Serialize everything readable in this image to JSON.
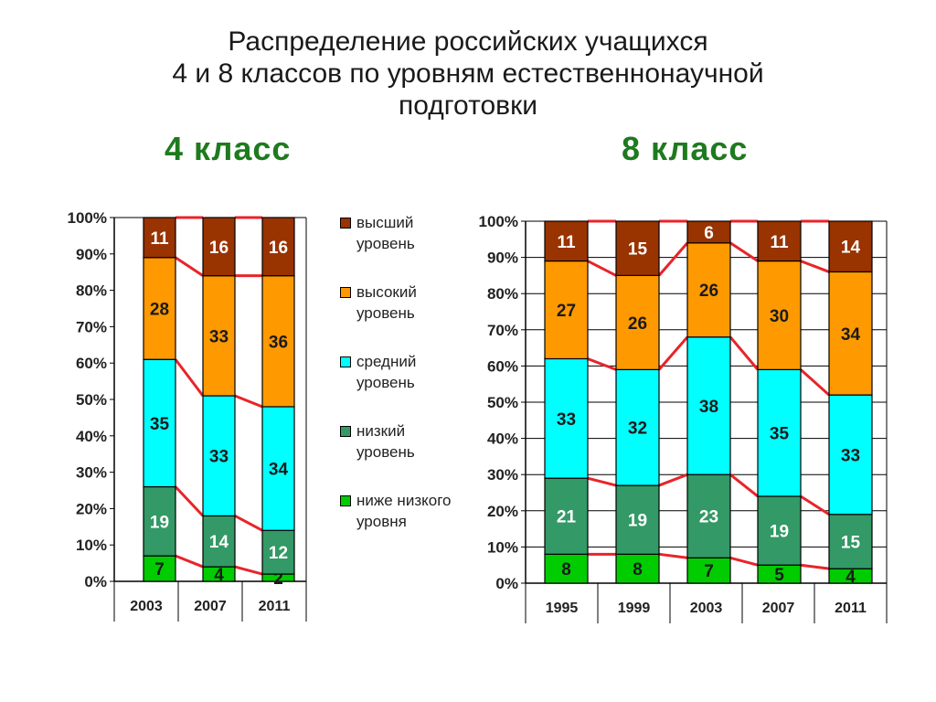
{
  "title": {
    "line1": "Распределение российских учащихся",
    "line2": "4 и 8 классов по уровням естественнонаучной",
    "line3": "подготовки"
  },
  "grade_titles": {
    "left": "4 класс",
    "right": "8 класс"
  },
  "legend": [
    {
      "label": "высший уровень",
      "color": "#993300"
    },
    {
      "label": "высокий уровень",
      "color": "#ff9900"
    },
    {
      "label": "средний уровень",
      "color": "#00ffff"
    },
    {
      "label": "низкий уровень",
      "color": "#339966"
    },
    {
      "label": "ниже низкого уровня",
      "color": "#00cc00"
    }
  ],
  "colors": {
    "connector_line": "#e8242a",
    "gridline": "#000000",
    "bar_border": "#000000"
  },
  "chart_data": [
    {
      "type": "bar",
      "stacked": true,
      "normalized": true,
      "title": "4 класс",
      "categories": [
        "2003",
        "2007",
        "2011"
      ],
      "y_ticks": [
        "0%",
        "10%",
        "20%",
        "30%",
        "40%",
        "50%",
        "60%",
        "70%",
        "80%",
        "90%",
        "100%"
      ],
      "ylim": [
        0,
        100
      ],
      "grid": false,
      "legend_position": "right",
      "series": [
        {
          "name": "ниже низкого уровня",
          "values": [
            7,
            4,
            2
          ]
        },
        {
          "name": "низкий уровень",
          "values": [
            19,
            14,
            12
          ]
        },
        {
          "name": "средний уровень",
          "values": [
            35,
            33,
            34
          ]
        },
        {
          "name": "высокий уровень",
          "values": [
            28,
            33,
            36
          ]
        },
        {
          "name": "высший уровень",
          "values": [
            11,
            16,
            16
          ]
        }
      ]
    },
    {
      "type": "bar",
      "stacked": true,
      "normalized": true,
      "title": "8 класс",
      "categories": [
        "1995",
        "1999",
        "2003",
        "2007",
        "2011"
      ],
      "y_ticks": [
        "0%",
        "10%",
        "20%",
        "30%",
        "40%",
        "50%",
        "60%",
        "70%",
        "80%",
        "90%",
        "100%"
      ],
      "ylim": [
        0,
        100
      ],
      "grid": true,
      "legend_position": "none",
      "series": [
        {
          "name": "ниже низкого уровня",
          "values": [
            8,
            8,
            7,
            5,
            4
          ]
        },
        {
          "name": "низкий уровень",
          "values": [
            21,
            19,
            23,
            19,
            15
          ]
        },
        {
          "name": "средний уровень",
          "values": [
            33,
            32,
            38,
            35,
            33
          ]
        },
        {
          "name": "высокий уровень",
          "values": [
            27,
            26,
            26,
            30,
            34
          ]
        },
        {
          "name": "высший уровень",
          "values": [
            11,
            15,
            6,
            11,
            14
          ]
        }
      ]
    }
  ]
}
